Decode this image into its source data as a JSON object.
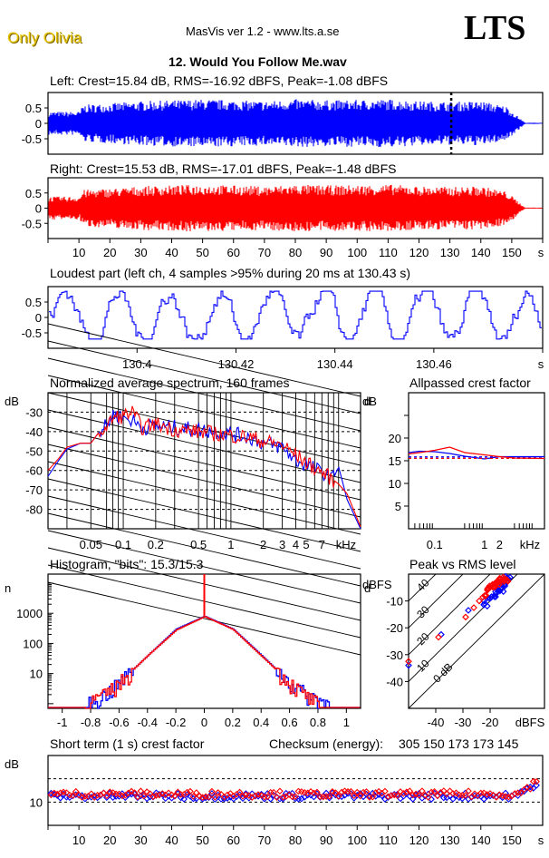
{
  "header": {
    "artist": "Only Olivia",
    "app_title": "MasVis ver 1.2 - www.lts.a.se",
    "logo": "LTS",
    "filename": "12. Would You Follow Me.wav"
  },
  "colors": {
    "left": "#0000ff",
    "right": "#ff0000",
    "artist": "#e6c200"
  },
  "chart_data": [
    {
      "id": "left-waveform",
      "type": "area",
      "title": "Left: Crest=15.84 dB, RMS=-16.92 dBFS, Peak=-1.08 dBFS",
      "ylim": [
        -1,
        1
      ],
      "yticks": [
        "0.5",
        "0",
        "-0.5"
      ],
      "ytick_values": [
        0.5,
        0,
        -0.5
      ],
      "xlim": [
        0,
        160
      ],
      "envelope": {
        "t": [
          0,
          10,
          11,
          20,
          30,
          40,
          50,
          60,
          70,
          80,
          90,
          100,
          110,
          120,
          130,
          140,
          148,
          152,
          154,
          160
        ],
        "amp": [
          0.38,
          0.38,
          0.6,
          0.65,
          0.72,
          0.75,
          0.78,
          0.75,
          0.72,
          0.78,
          0.75,
          0.76,
          0.78,
          0.72,
          0.7,
          0.72,
          0.55,
          0.2,
          0.02,
          0.02
        ]
      },
      "marker_time_s": 130.43,
      "color": "#0000ff"
    },
    {
      "id": "right-waveform",
      "type": "area",
      "title": "Right: Crest=15.53 dB, RMS=-17.01 dBFS, Peak=-1.48 dBFS",
      "ylim": [
        -1,
        1
      ],
      "yticks": [
        "0.5",
        "0",
        "-0.5"
      ],
      "ytick_values": [
        0.5,
        0,
        -0.5
      ],
      "xlim": [
        0,
        160
      ],
      "xticks": [
        "10",
        "20",
        "30",
        "40",
        "50",
        "60",
        "70",
        "80",
        "90",
        "100",
        "110",
        "120",
        "130",
        "140",
        "150"
      ],
      "xtick_values": [
        10,
        20,
        30,
        40,
        50,
        60,
        70,
        80,
        90,
        100,
        110,
        120,
        130,
        140,
        150
      ],
      "xunit": "s",
      "envelope": {
        "t": [
          0,
          10,
          11,
          20,
          30,
          40,
          50,
          60,
          70,
          80,
          90,
          100,
          110,
          120,
          130,
          140,
          148,
          152,
          154,
          160
        ],
        "amp": [
          0.38,
          0.38,
          0.6,
          0.65,
          0.72,
          0.75,
          0.78,
          0.75,
          0.72,
          0.78,
          0.75,
          0.76,
          0.78,
          0.72,
          0.7,
          0.72,
          0.55,
          0.2,
          0.02,
          0.02
        ]
      },
      "color": "#ff0000"
    },
    {
      "id": "loudest-part",
      "type": "line",
      "title": "Loudest part (left  ch, 4 samples >95% during 20 ms at 130.43 s)",
      "ylim": [
        -1,
        1
      ],
      "yticks": [
        "0.5",
        "0",
        "-0.5"
      ],
      "ytick_values": [
        0.5,
        0,
        -0.5
      ],
      "xlim": [
        130.382,
        130.482
      ],
      "xticks": [
        "130.4",
        "130.42",
        "130.44",
        "130.46"
      ],
      "xtick_values": [
        130.4,
        130.42,
        130.44,
        130.46
      ],
      "xunit": "s",
      "color": "#0000ff"
    },
    {
      "id": "spectrum",
      "type": "line",
      "title": "Normalized average spectrum, 160 frames",
      "ylabel": "dB",
      "ylim": [
        -90,
        -20
      ],
      "yticks": [
        "-30",
        "-40",
        "-50",
        "-60",
        "-70",
        "-80"
      ],
      "ytick_values": [
        -30,
        -40,
        -50,
        -60,
        -70,
        -80
      ],
      "xscale": "log",
      "xlim": [
        0.02,
        16
      ],
      "xticks": [
        "0.05",
        "0.1",
        "0.2",
        "0.5",
        "1",
        "2",
        "3",
        "4",
        "5",
        "7"
      ],
      "xtick_values": [
        0.05,
        0.1,
        0.2,
        0.5,
        1,
        2,
        3,
        4,
        5,
        7
      ],
      "xunit": "kHz",
      "series": [
        {
          "name": "Left",
          "color": "#0000ff",
          "x": [
            0.02,
            0.025,
            0.03,
            0.04,
            0.05,
            0.06,
            0.07,
            0.08,
            0.1,
            0.12,
            0.15,
            0.2,
            0.3,
            0.5,
            0.7,
            1,
            1.5,
            2,
            3,
            4,
            5,
            7,
            9,
            10,
            12,
            16
          ],
          "y": [
            -63,
            -55,
            -49,
            -46,
            -46,
            -40,
            -37,
            -31,
            -33,
            -34,
            -38,
            -37,
            -38,
            -39,
            -40,
            -41,
            -43,
            -46,
            -48,
            -55,
            -57,
            -61,
            -64,
            -58,
            -75,
            -90
          ]
        },
        {
          "name": "Right",
          "color": "#ff0000",
          "x": [
            0.02,
            0.025,
            0.03,
            0.04,
            0.05,
            0.06,
            0.07,
            0.08,
            0.1,
            0.12,
            0.15,
            0.2,
            0.3,
            0.5,
            0.7,
            1,
            1.5,
            2,
            3,
            4,
            5,
            7,
            9,
            10,
            12,
            16
          ],
          "y": [
            -60,
            -54,
            -48,
            -46,
            -46,
            -40,
            -38,
            -33,
            -32,
            -30,
            -38,
            -36,
            -39,
            -40,
            -41,
            -42,
            -43,
            -45,
            -47,
            -52,
            -56,
            -61,
            -65,
            -67,
            -72,
            -89
          ]
        }
      ]
    },
    {
      "id": "allpassed-crest",
      "type": "line",
      "title": "Allpassed crest factor",
      "ylabel": "dB",
      "ylim": [
        0,
        30
      ],
      "yticks": [
        "20",
        "15",
        "10",
        "5"
      ],
      "ytick_values": [
        20,
        15,
        10,
        5
      ],
      "xscale": "log",
      "xlim": [
        0.03,
        16
      ],
      "xticks": [
        "0.1",
        "1",
        "2"
      ],
      "xtick_values": [
        0.1,
        1,
        2
      ],
      "xunit": "kHz",
      "series": [
        {
          "name": "Left",
          "color": "#0000ff",
          "x": [
            0.03,
            0.05,
            0.1,
            0.2,
            0.4,
            1,
            2,
            4,
            16
          ],
          "y": [
            16.8,
            17.1,
            17.0,
            16.6,
            16.0,
            15.4,
            15.9,
            15.9,
            15.9
          ],
          "reference": 15.84
        },
        {
          "name": "Right",
          "color": "#ff0000",
          "x": [
            0.03,
            0.05,
            0.1,
            0.2,
            0.4,
            1,
            2,
            4,
            16
          ],
          "y": [
            16.5,
            16.8,
            17.3,
            18.0,
            16.8,
            16.3,
            15.9,
            15.6,
            15.5
          ],
          "reference": 15.53
        }
      ]
    },
    {
      "id": "histogram",
      "type": "line",
      "title": "Histogram, \"bits\": 15.3/15.3",
      "ylabel": "n",
      "yscale": "log",
      "ylim": [
        0.7,
        20000
      ],
      "yticks": [
        "1000",
        "100",
        "10"
      ],
      "ytick_values": [
        1000,
        100,
        10
      ],
      "xlim": [
        -1.1,
        1.1
      ],
      "xticks": [
        "-1",
        "-0.8",
        "-0.6",
        "-0.4",
        "-0.2",
        "0",
        "0.2",
        "0.4",
        "0.6",
        "0.8",
        "1"
      ],
      "xtick_values": [
        -1,
        -0.8,
        -0.6,
        -0.4,
        -0.2,
        0,
        0.2,
        0.4,
        0.6,
        0.8,
        1
      ],
      "series": [
        {
          "name": "Left",
          "color": "#0000ff",
          "x": [
            -0.82,
            -0.7,
            -0.6,
            -0.4,
            -0.2,
            0,
            0.2,
            0.4,
            0.6,
            0.72,
            0.88
          ],
          "y": [
            1,
            2,
            5,
            40,
            300,
            800,
            300,
            40,
            5,
            2,
            1
          ]
        },
        {
          "name": "Right",
          "color": "#ff0000",
          "x": [
            -0.84,
            -0.7,
            -0.6,
            -0.4,
            -0.2,
            0,
            0.2,
            0.4,
            0.6,
            0.7,
            0.8
          ],
          "y": [
            1,
            2,
            5,
            40,
            280,
            780,
            290,
            38,
            5,
            2,
            1
          ],
          "spike_at_zero": 20000
        }
      ]
    },
    {
      "id": "peak-vs-rms",
      "type": "scatter",
      "title": "Peak vs RMS level",
      "ylabel": "dBFS",
      "xlabel": "dBFS",
      "xlim": [
        -50,
        0
      ],
      "ylim": [
        -50,
        0
      ],
      "xticks": [
        "-40",
        "-30",
        "-20"
      ],
      "xtick_values": [
        -40,
        -30,
        -20
      ],
      "yticks": [
        "-10",
        "-20",
        "-30",
        "-40"
      ],
      "ytick_values": [
        -10,
        -20,
        -30,
        -40
      ],
      "crest_lines": [
        "0 dB",
        "10",
        "20",
        "30",
        "40"
      ],
      "crest_line_values": [
        0,
        10,
        20,
        30,
        40
      ],
      "series": [
        {
          "name": "Left",
          "color": "#0000ff",
          "x": [
            -50,
            -38,
            -28,
            -22,
            -20,
            -18,
            -17,
            -16,
            -15,
            -14,
            -13.5
          ],
          "y": [
            -34,
            -22.5,
            -13.5,
            -11,
            -9,
            -7.5,
            -6,
            -5.5,
            -4,
            -3,
            -1.5
          ]
        },
        {
          "name": "Right",
          "color": "#ff0000",
          "x": [
            -50,
            -39,
            -29,
            -26,
            -24,
            -22,
            -21,
            -20,
            -19,
            -18,
            -17,
            -16,
            -15,
            -14
          ],
          "y": [
            -32.5,
            -23.5,
            -16,
            -12.5,
            -10,
            -8,
            -6,
            -5,
            -4,
            -3.5,
            -3,
            -2.5,
            -2,
            -2
          ]
        }
      ]
    },
    {
      "id": "short-term-crest",
      "type": "scatter",
      "title": "Short term (1 s) crest factor",
      "ylabel": "dB",
      "ylim": [
        5,
        20
      ],
      "yticks": [
        "10"
      ],
      "ytick_values": [
        10
      ],
      "dashed_lines": [
        10,
        15
      ],
      "xlim": [
        0,
        160
      ],
      "xticks": [
        "10",
        "20",
        "30",
        "40",
        "50",
        "60",
        "70",
        "80",
        "90",
        "100",
        "110",
        "120",
        "130",
        "140",
        "150"
      ],
      "xtick_values": [
        10,
        20,
        30,
        40,
        50,
        60,
        70,
        80,
        90,
        100,
        110,
        120,
        130,
        140,
        150
      ],
      "xunit": "s",
      "series": [
        {
          "name": "Left",
          "color": "#0000ff",
          "mean": 11.3
        },
        {
          "name": "Right",
          "color": "#ff0000",
          "mean": 11.7
        }
      ]
    }
  ],
  "checksum": {
    "label": "Checksum (energy):",
    "values": "305 150 173 173 145"
  }
}
